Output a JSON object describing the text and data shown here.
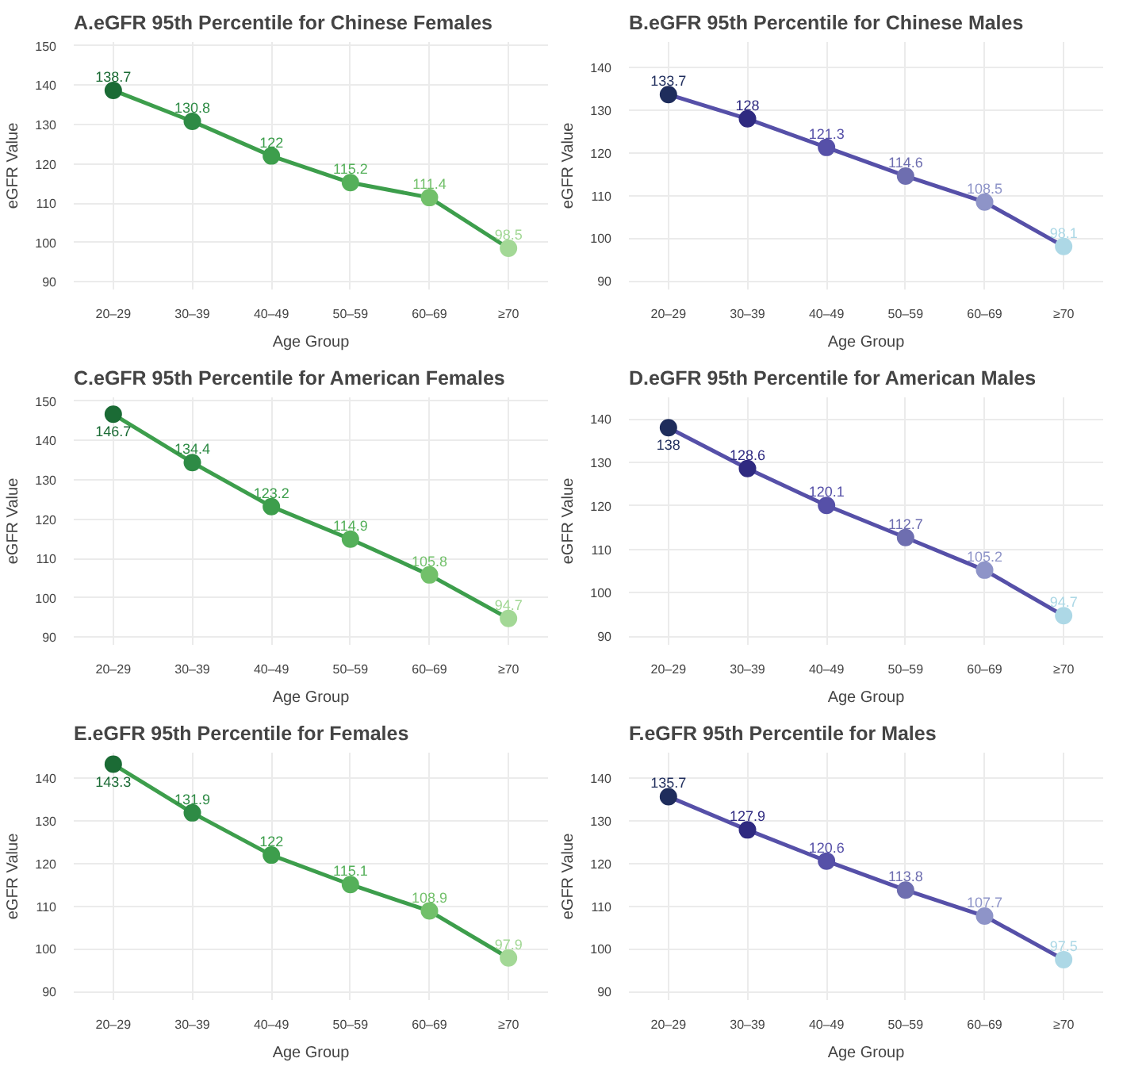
{
  "chart_data": [
    {
      "type": "line",
      "title": "A.eGFR 95th Percentile for Chinese Females",
      "xlabel": "Age Group",
      "ylabel": "eGFR Value",
      "categories": [
        "20–29",
        "30–39",
        "40–49",
        "50–59",
        "60–69",
        "≥70"
      ],
      "series": [
        {
          "color": "#3d9e4c",
          "colors": [
            "#1b6b35",
            "#2e8b45",
            "#3d9e4c",
            "#55b05a",
            "#72c06a",
            "#a3d896"
          ],
          "values": [
            138.7,
            130.8,
            122,
            115.2,
            111.4,
            98.5
          ]
        }
      ],
      "ylim": [
        88,
        151
      ],
      "yticks": [
        90,
        100,
        110,
        120,
        130,
        140,
        150
      ],
      "grid": true,
      "marker": "circle",
      "data_labels": true
    },
    {
      "type": "line",
      "title": "B.eGFR 95th Percentile for Chinese Males",
      "xlabel": "Age Group",
      "ylabel": "eGFR Value",
      "categories": [
        "20–29",
        "30–39",
        "40–49",
        "50–59",
        "60–69",
        "≥70"
      ],
      "series": [
        {
          "color": "#5650a8",
          "colors": [
            "#1f2d5c",
            "#2f2a80",
            "#5650a8",
            "#6e6eb0",
            "#8e94c8",
            "#add8e6"
          ],
          "values": [
            133.7,
            128,
            121.3,
            114.6,
            108.5,
            98.1
          ]
        }
      ],
      "ylim": [
        88,
        146
      ],
      "yticks": [
        90,
        100,
        110,
        120,
        130,
        140
      ],
      "grid": true,
      "marker": "circle",
      "data_labels": true
    },
    {
      "type": "line",
      "title": "C.eGFR 95th Percentile for American Females",
      "xlabel": "Age Group",
      "ylabel": "eGFR Value",
      "categories": [
        "20–29",
        "30–39",
        "40–49",
        "50–59",
        "60–69",
        "≥70"
      ],
      "series": [
        {
          "color": "#3d9e4c",
          "colors": [
            "#1b6b35",
            "#2e8b45",
            "#3d9e4c",
            "#55b05a",
            "#72c06a",
            "#a3d896"
          ],
          "values": [
            146.7,
            134.4,
            123.2,
            114.9,
            105.8,
            94.7
          ]
        }
      ],
      "ylim": [
        88,
        151
      ],
      "yticks": [
        90,
        100,
        110,
        120,
        130,
        140,
        150
      ],
      "grid": true,
      "marker": "circle",
      "data_labels": true
    },
    {
      "type": "line",
      "title": "D.eGFR 95th Percentile for American Males",
      "xlabel": "Age Group",
      "ylabel": "eGFR Value",
      "categories": [
        "20–29",
        "30–39",
        "40–49",
        "50–59",
        "60–69",
        "≥70"
      ],
      "series": [
        {
          "color": "#5650a8",
          "colors": [
            "#1f2d5c",
            "#2f2a80",
            "#5650a8",
            "#6e6eb0",
            "#8e94c8",
            "#add8e6"
          ],
          "values": [
            138,
            128.6,
            120.1,
            112.7,
            105.2,
            94.7
          ]
        }
      ],
      "ylim": [
        88,
        145
      ],
      "yticks": [
        90,
        100,
        110,
        120,
        130,
        140
      ],
      "grid": true,
      "marker": "circle",
      "data_labels": true
    },
    {
      "type": "line",
      "title": "E.eGFR 95th Percentile for Females",
      "xlabel": "Age Group",
      "ylabel": "eGFR Value",
      "categories": [
        "20–29",
        "30–39",
        "40–49",
        "50–59",
        "60–69",
        "≥70"
      ],
      "series": [
        {
          "color": "#3d9e4c",
          "colors": [
            "#1b6b35",
            "#2e8b45",
            "#3d9e4c",
            "#55b05a",
            "#72c06a",
            "#a3d896"
          ],
          "values": [
            143.3,
            131.9,
            122,
            115.1,
            108.9,
            97.9
          ]
        }
      ],
      "ylim": [
        88,
        146
      ],
      "yticks": [
        90,
        100,
        110,
        120,
        130,
        140
      ],
      "grid": true,
      "marker": "circle",
      "data_labels": true
    },
    {
      "type": "line",
      "title": "F.eGFR 95th Percentile for Males",
      "xlabel": "Age Group",
      "ylabel": "eGFR Value",
      "categories": [
        "20–29",
        "30–39",
        "40–49",
        "50–59",
        "60–69",
        "≥70"
      ],
      "series": [
        {
          "color": "#5650a8",
          "colors": [
            "#1f2d5c",
            "#2f2a80",
            "#5650a8",
            "#6e6eb0",
            "#8e94c8",
            "#add8e6"
          ],
          "values": [
            135.7,
            127.9,
            120.6,
            113.8,
            107.7,
            97.5
          ]
        }
      ],
      "ylim": [
        88,
        146
      ],
      "yticks": [
        90,
        100,
        110,
        120,
        130,
        140
      ],
      "grid": true,
      "marker": "circle",
      "data_labels": true
    }
  ]
}
